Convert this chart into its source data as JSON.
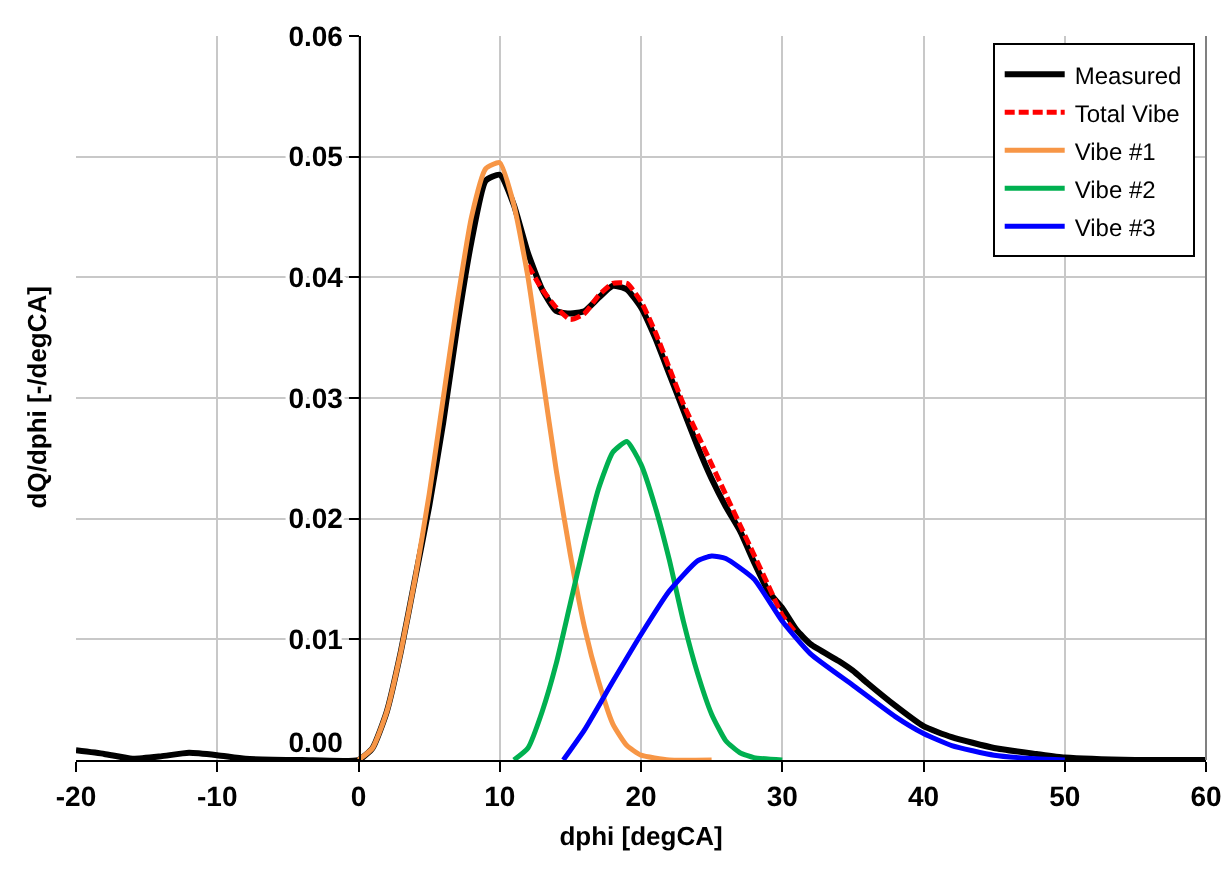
{
  "chart_data": {
    "type": "line",
    "xlabel": "dphi [degCA]",
    "ylabel": "dQ/dphi [-/degCA]",
    "xlim": [
      -20,
      60
    ],
    "xticks": [
      -20,
      -10,
      0,
      10,
      20,
      30,
      40,
      50,
      60
    ],
    "ylim": [
      0,
      0.06
    ],
    "yticks": [
      {
        "value": 0,
        "label": "0.00"
      },
      0.01,
      0.02,
      0.03,
      0.04,
      0.05,
      0.06
    ],
    "grid": true,
    "legend": "top right",
    "series": [
      {
        "name": "Measured",
        "color": "#000000",
        "x": [
          -20,
          -18,
          -16,
          -14,
          -12,
          -10,
          -8,
          -4,
          0,
          1,
          2,
          3,
          4,
          5,
          6,
          7,
          8,
          9,
          10,
          11,
          12,
          13,
          14,
          15,
          16,
          17,
          18,
          19,
          20,
          21,
          22,
          23,
          24,
          25,
          26,
          27,
          28,
          29,
          30,
          31,
          32,
          34,
          35,
          36,
          38,
          40,
          42,
          45,
          48,
          50,
          55,
          60
        ],
        "values": [
          0.0008,
          0.0005,
          0.0001,
          0.0003,
          0.0006,
          0.0004,
          0.0001,
          0,
          0,
          0.001,
          0.004,
          0.009,
          0.015,
          0.021,
          0.028,
          0.036,
          0.043,
          0.048,
          0.0485,
          0.046,
          0.042,
          0.039,
          0.0372,
          0.037,
          0.0372,
          0.0383,
          0.0393,
          0.039,
          0.0375,
          0.035,
          0.032,
          0.029,
          0.026,
          0.0233,
          0.021,
          0.019,
          0.0164,
          0.014,
          0.0126,
          0.0108,
          0.0096,
          0.0082,
          0.0074,
          0.0064,
          0.0045,
          0.0028,
          0.0019,
          0.001,
          0.0005,
          0.0002,
          0,
          0
        ]
      },
      {
        "name": "Total Vibe",
        "color": "#ff0000",
        "line_style": "dashed",
        "x": [
          12,
          13,
          14,
          15,
          16,
          17,
          18,
          19,
          20,
          21,
          22,
          23,
          24,
          25,
          26,
          27,
          28,
          29,
          30,
          31
        ],
        "values": [
          0.041,
          0.039,
          0.0375,
          0.0365,
          0.037,
          0.0385,
          0.0395,
          0.0395,
          0.038,
          0.0355,
          0.0325,
          0.0295,
          0.027,
          0.0245,
          0.022,
          0.0195,
          0.017,
          0.0145,
          0.012,
          0.0105
        ]
      },
      {
        "name": "Vibe #1",
        "color": "#f79646",
        "x": [
          0,
          1,
          2,
          3,
          4,
          5,
          6,
          7,
          8,
          9,
          10,
          11,
          12,
          13,
          14,
          15,
          16,
          17,
          18,
          19,
          20,
          22,
          25
        ],
        "values": [
          0,
          0.001,
          0.004,
          0.009,
          0.015,
          0.022,
          0.03,
          0.038,
          0.045,
          0.049,
          0.0495,
          0.046,
          0.04,
          0.032,
          0.024,
          0.017,
          0.011,
          0.0065,
          0.003,
          0.0012,
          0.0004,
          0,
          0
        ]
      },
      {
        "name": "Vibe #2",
        "color": "#00b050",
        "x": [
          11,
          12,
          13,
          14,
          15,
          16,
          17,
          18,
          19,
          20,
          21,
          22,
          23,
          24,
          25,
          26,
          27,
          28,
          30
        ],
        "values": [
          0,
          0.001,
          0.004,
          0.008,
          0.013,
          0.018,
          0.0225,
          0.0255,
          0.0264,
          0.0245,
          0.021,
          0.0166,
          0.0115,
          0.0072,
          0.0038,
          0.0016,
          0.0006,
          0.0002,
          0
        ]
      },
      {
        "name": "Vibe #3",
        "color": "#0000ff",
        "x": [
          14.5,
          16,
          18,
          20,
          22,
          24,
          25,
          26,
          28,
          30,
          32,
          35,
          38,
          40,
          42,
          45,
          48,
          50
        ],
        "values": [
          0,
          0.0025,
          0.0065,
          0.0104,
          0.014,
          0.0165,
          0.0169,
          0.0167,
          0.015,
          0.0115,
          0.0088,
          0.0062,
          0.0036,
          0.0022,
          0.0012,
          0.0004,
          0.0001,
          0
        ]
      }
    ]
  }
}
